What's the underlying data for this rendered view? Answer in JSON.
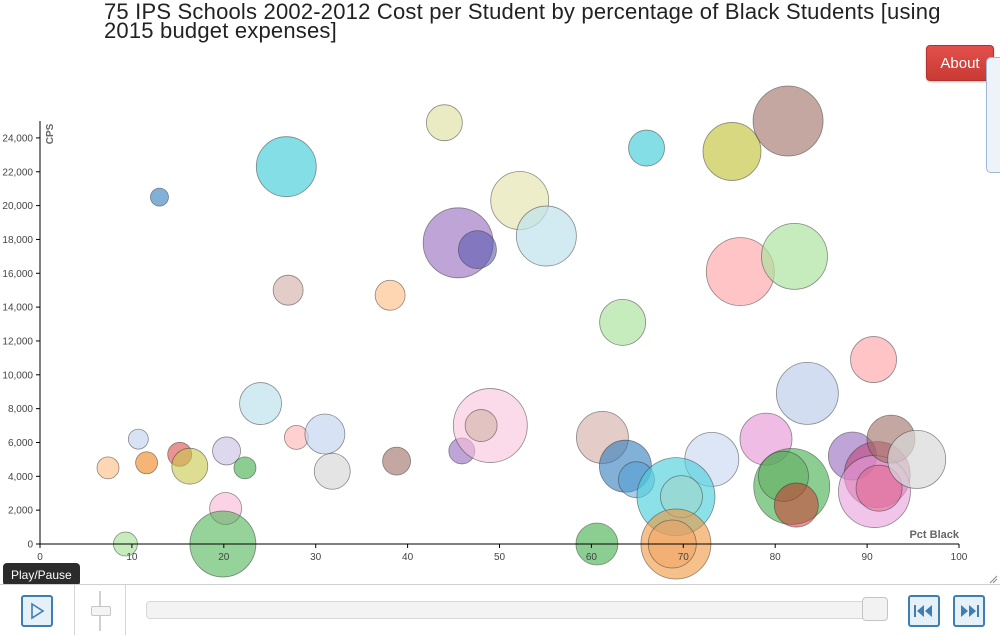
{
  "title": "75 IPS Schools 2002-2012 Cost per Student by percentage of Black Students [using 2015 budget expenses]",
  "about_label": "About",
  "tooltip_label": "Play/Pause",
  "icons": {
    "play": "play-icon",
    "prev": "skip-to-start-icon",
    "next": "skip-to-end-icon",
    "resize": "resize-grip-icon"
  },
  "colors": {
    "accent": "#3e7fb0",
    "about": "#d9443e"
  },
  "chart_data": {
    "type": "scatter",
    "xlabel": "Pct Black",
    "ylabel": "CPS",
    "xlim": [
      0,
      100
    ],
    "ylim": [
      0,
      25000
    ],
    "xticks": [
      0,
      10,
      20,
      30,
      40,
      50,
      60,
      70,
      80,
      90,
      100
    ],
    "yticks": [
      0,
      2000,
      4000,
      6000,
      8000,
      10000,
      12000,
      14000,
      16000,
      18000,
      20000,
      22000,
      24000
    ],
    "x_tick_labels": [
      "0",
      "10",
      "20",
      "30",
      "40",
      "50",
      "60",
      "70",
      "80",
      "90",
      "100"
    ],
    "y_tick_labels": [
      "0",
      "2,000",
      "4,000",
      "6,000",
      "8,000",
      "10,000",
      "12,000",
      "14,000",
      "16,000",
      "18,000",
      "20,000",
      "22,000",
      "24,000"
    ],
    "grid": false,
    "points": [
      {
        "x": 26.8,
        "y": 22300,
        "r": 30,
        "color": "#4fd0dc",
        "op": 0.7
      },
      {
        "x": 13,
        "y": 20500,
        "r": 9,
        "color": "#2f7bbd",
        "op": 0.6
      },
      {
        "x": 44,
        "y": 24900,
        "r": 18,
        "color": "#e6e6b4",
        "op": 0.8
      },
      {
        "x": 66,
        "y": 23400,
        "r": 18,
        "color": "#4fd0dc",
        "op": 0.7
      },
      {
        "x": 75.3,
        "y": 23200,
        "r": 29,
        "color": "#c8c84a",
        "op": 0.7
      },
      {
        "x": 81.4,
        "y": 25000,
        "r": 35,
        "color": "#9c6d62",
        "op": 0.6
      },
      {
        "x": 52.2,
        "y": 20300,
        "r": 29,
        "color": "#e6e6b4",
        "op": 0.7
      },
      {
        "x": 45.5,
        "y": 17800,
        "r": 35,
        "color": "#9467bd",
        "op": 0.6
      },
      {
        "x": 47.6,
        "y": 17400,
        "r": 19,
        "color": "#5b5bb0",
        "op": 0.6
      },
      {
        "x": 55.1,
        "y": 18200,
        "r": 30,
        "color": "#bfe3ee",
        "op": 0.7
      },
      {
        "x": 27,
        "y": 15000,
        "r": 15,
        "color": "#d8b8b0",
        "op": 0.7
      },
      {
        "x": 38.1,
        "y": 14700,
        "r": 15,
        "color": "#ffc592",
        "op": 0.7
      },
      {
        "x": 63.4,
        "y": 13100,
        "r": 23,
        "color": "#aee3a0",
        "op": 0.7
      },
      {
        "x": 76.2,
        "y": 16100,
        "r": 34,
        "color": "#ff9da0",
        "op": 0.6
      },
      {
        "x": 82.1,
        "y": 17000,
        "r": 33,
        "color": "#aee3a0",
        "op": 0.7
      },
      {
        "x": 90.7,
        "y": 10900,
        "r": 23,
        "color": "#ff9da0",
        "op": 0.6
      },
      {
        "x": 83.5,
        "y": 8900,
        "r": 31,
        "color": "#b4c6e8",
        "op": 0.6
      },
      {
        "x": 24,
        "y": 8300,
        "r": 21,
        "color": "#bfe3ee",
        "op": 0.7
      },
      {
        "x": 10.7,
        "y": 6200,
        "r": 10,
        "color": "#c6d6f0",
        "op": 0.7
      },
      {
        "x": 7.4,
        "y": 4500,
        "r": 11,
        "color": "#ffc592",
        "op": 0.7
      },
      {
        "x": 11.6,
        "y": 4800,
        "r": 11,
        "color": "#f0963c",
        "op": 0.7
      },
      {
        "x": 15.2,
        "y": 5300,
        "r": 12,
        "color": "#d62728",
        "op": 0.5
      },
      {
        "x": 16.3,
        "y": 4600,
        "r": 18,
        "color": "#c8c84a",
        "op": 0.6
      },
      {
        "x": 20.3,
        "y": 5500,
        "r": 14,
        "color": "#d0c8e8",
        "op": 0.7
      },
      {
        "x": 22.3,
        "y": 4500,
        "r": 11,
        "color": "#3fae48",
        "op": 0.6
      },
      {
        "x": 27.9,
        "y": 6300,
        "r": 12,
        "color": "#ffb0b0",
        "op": 0.6
      },
      {
        "x": 31,
        "y": 6500,
        "r": 20,
        "color": "#c6d6f0",
        "op": 0.7
      },
      {
        "x": 31.8,
        "y": 4300,
        "r": 18,
        "color": "#d8d8d8",
        "op": 0.7
      },
      {
        "x": 38.8,
        "y": 4900,
        "r": 14,
        "color": "#9c6d62",
        "op": 0.6
      },
      {
        "x": 45.9,
        "y": 5500,
        "r": 13,
        "color": "#9467bd",
        "op": 0.6
      },
      {
        "x": 49,
        "y": 7000,
        "r": 37,
        "color": "#f8c2dc",
        "op": 0.6
      },
      {
        "x": 48,
        "y": 7000,
        "r": 16,
        "color": "#d8b8b0",
        "op": 0.7
      },
      {
        "x": 20.2,
        "y": 2100,
        "r": 16,
        "color": "#f8c2dc",
        "op": 0.7
      },
      {
        "x": 9.3,
        "y": 0,
        "r": 12,
        "color": "#aee3a0",
        "op": 0.7
      },
      {
        "x": 19.9,
        "y": 0,
        "r": 33,
        "color": "#3fae48",
        "op": 0.55
      },
      {
        "x": 60.6,
        "y": 0,
        "r": 21,
        "color": "#3fae48",
        "op": 0.6
      },
      {
        "x": 61.2,
        "y": 6300,
        "r": 26,
        "color": "#d8b8b0",
        "op": 0.7
      },
      {
        "x": 63.7,
        "y": 4600,
        "r": 26,
        "color": "#2f7bbd",
        "op": 0.6
      },
      {
        "x": 64.9,
        "y": 3800,
        "r": 18,
        "color": "#4d9ed3",
        "op": 0.5
      },
      {
        "x": 73.1,
        "y": 5000,
        "r": 27,
        "color": "#c6d6f0",
        "op": 0.6
      },
      {
        "x": 69.2,
        "y": 2800,
        "r": 39,
        "color": "#4fd0dc",
        "op": 0.65
      },
      {
        "x": 69.8,
        "y": 2800,
        "r": 21,
        "color": "#9fd6c8",
        "op": 0.6
      },
      {
        "x": 69.2,
        "y": 0,
        "r": 35,
        "color": "#f0963c",
        "op": 0.6
      },
      {
        "x": 68.8,
        "y": 0,
        "r": 24,
        "color": "#f0a060",
        "op": 0.5
      },
      {
        "x": 79,
        "y": 6200,
        "r": 26,
        "color": "#e79fda",
        "op": 0.7
      },
      {
        "x": 81.8,
        "y": 3400,
        "r": 38,
        "color": "#3fae48",
        "op": 0.6
      },
      {
        "x": 80.9,
        "y": 4000,
        "r": 25,
        "color": "#5aa85a",
        "op": 0.5
      },
      {
        "x": 82.3,
        "y": 2300,
        "r": 22,
        "color": "#d62728",
        "op": 0.5
      },
      {
        "x": 88.4,
        "y": 5200,
        "r": 24,
        "color": "#9467bd",
        "op": 0.6
      },
      {
        "x": 91.1,
        "y": 4100,
        "r": 33,
        "color": "#c0306a",
        "op": 0.5
      },
      {
        "x": 90.8,
        "y": 3100,
        "r": 36,
        "color": "#e79fda",
        "op": 0.6
      },
      {
        "x": 91.3,
        "y": 3300,
        "r": 23,
        "color": "#e0608a",
        "op": 0.5
      },
      {
        "x": 92.6,
        "y": 6200,
        "r": 24,
        "color": "#9c6d62",
        "op": 0.6
      },
      {
        "x": 95.4,
        "y": 5000,
        "r": 29,
        "color": "#d8d8d8",
        "op": 0.7
      }
    ]
  }
}
